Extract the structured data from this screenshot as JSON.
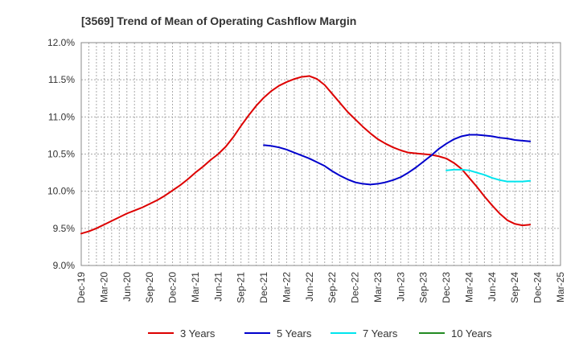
{
  "chart_data": {
    "type": "line",
    "title": "[3569]  Trend of Mean of Operating Cashflow Margin",
    "xlabel": "",
    "ylabel": "",
    "ylim": [
      9.0,
      12.0
    ],
    "yticks": [
      "9.0%",
      "9.5%",
      "10.0%",
      "10.5%",
      "11.0%",
      "11.5%",
      "12.0%"
    ],
    "ytick_values": [
      9.0,
      9.5,
      10.0,
      10.5,
      11.0,
      11.5,
      12.0
    ],
    "xticks": [
      "Dec-19",
      "Mar-20",
      "Jun-20",
      "Sep-20",
      "Dec-20",
      "Mar-21",
      "Jun-21",
      "Sep-21",
      "Dec-21",
      "Mar-22",
      "Jun-22",
      "Sep-22",
      "Dec-22",
      "Mar-23",
      "Jun-23",
      "Sep-23",
      "Dec-23",
      "Mar-24",
      "Jun-24",
      "Sep-24",
      "Dec-24",
      "Mar-25"
    ],
    "x": [
      "Dec-19",
      "Jan-20",
      "Feb-20",
      "Mar-20",
      "Apr-20",
      "May-20",
      "Jun-20",
      "Jul-20",
      "Aug-20",
      "Sep-20",
      "Oct-20",
      "Nov-20",
      "Dec-20",
      "Jan-21",
      "Feb-21",
      "Mar-21",
      "Apr-21",
      "May-21",
      "Jun-21",
      "Jul-21",
      "Aug-21",
      "Sep-21",
      "Oct-21",
      "Nov-21",
      "Dec-21",
      "Jan-22",
      "Feb-22",
      "Mar-22",
      "Apr-22",
      "May-22",
      "Jun-22",
      "Jul-22",
      "Aug-22",
      "Sep-22",
      "Oct-22",
      "Nov-22",
      "Dec-22",
      "Jan-23",
      "Feb-23",
      "Mar-23",
      "Apr-23",
      "May-23",
      "Jun-23",
      "Jul-23",
      "Aug-23",
      "Sep-23",
      "Oct-23",
      "Nov-23",
      "Dec-23",
      "Jan-24",
      "Feb-24",
      "Mar-24",
      "Apr-24",
      "May-24",
      "Jun-24",
      "Jul-24",
      "Aug-24",
      "Sep-24",
      "Oct-24",
      "Nov-24",
      "Dec-24",
      "Jan-25",
      "Feb-25",
      "Mar-25"
    ],
    "grid": true,
    "legend_position": "bottom",
    "series": [
      {
        "name": "3 Years",
        "color": "#dd0000",
        "values": [
          9.43,
          9.46,
          9.5,
          9.55,
          9.6,
          9.65,
          9.7,
          9.74,
          9.78,
          9.83,
          9.88,
          9.94,
          10.01,
          10.08,
          10.16,
          10.25,
          10.33,
          10.42,
          10.5,
          10.6,
          10.73,
          10.88,
          11.02,
          11.15,
          11.26,
          11.35,
          11.42,
          11.47,
          11.51,
          11.54,
          11.55,
          11.51,
          11.43,
          11.31,
          11.19,
          11.07,
          10.97,
          10.87,
          10.78,
          10.7,
          10.64,
          10.59,
          10.55,
          10.52,
          10.51,
          10.5,
          10.49,
          10.47,
          10.44,
          10.38,
          10.3,
          10.18,
          10.06,
          9.93,
          9.81,
          9.7,
          9.61,
          9.56,
          9.54,
          9.55,
          null,
          null,
          null,
          null
        ]
      },
      {
        "name": "5 Years",
        "color": "#0000cc",
        "values": [
          null,
          null,
          null,
          null,
          null,
          null,
          null,
          null,
          null,
          null,
          null,
          null,
          null,
          null,
          null,
          null,
          null,
          null,
          null,
          null,
          null,
          null,
          null,
          null,
          10.62,
          10.61,
          10.59,
          10.56,
          10.52,
          10.48,
          10.44,
          10.39,
          10.34,
          10.27,
          10.21,
          10.16,
          10.12,
          10.1,
          10.09,
          10.1,
          10.12,
          10.15,
          10.19,
          10.25,
          10.32,
          10.4,
          10.48,
          10.57,
          10.64,
          10.7,
          10.74,
          10.76,
          10.76,
          10.75,
          10.74,
          10.72,
          10.71,
          10.69,
          10.68,
          10.67,
          null,
          null,
          null,
          null
        ]
      },
      {
        "name": "7 Years",
        "color": "#00e5ee",
        "values": [
          null,
          null,
          null,
          null,
          null,
          null,
          null,
          null,
          null,
          null,
          null,
          null,
          null,
          null,
          null,
          null,
          null,
          null,
          null,
          null,
          null,
          null,
          null,
          null,
          null,
          null,
          null,
          null,
          null,
          null,
          null,
          null,
          null,
          null,
          null,
          null,
          null,
          null,
          null,
          null,
          null,
          null,
          null,
          null,
          null,
          null,
          null,
          null,
          10.28,
          10.29,
          10.29,
          10.28,
          10.25,
          10.22,
          10.18,
          10.15,
          10.13,
          10.13,
          10.13,
          10.14,
          null,
          null,
          null,
          null
        ]
      },
      {
        "name": "10 Years",
        "color": "#228b22",
        "values": [
          null,
          null,
          null,
          null,
          null,
          null,
          null,
          null,
          null,
          null,
          null,
          null,
          null,
          null,
          null,
          null,
          null,
          null,
          null,
          null,
          null,
          null,
          null,
          null,
          null,
          null,
          null,
          null,
          null,
          null,
          null,
          null,
          null,
          null,
          null,
          null,
          null,
          null,
          null,
          null,
          null,
          null,
          null,
          null,
          null,
          null,
          null,
          null,
          null,
          null,
          null,
          null,
          null,
          null,
          null,
          null,
          null,
          null,
          null,
          null,
          null,
          null,
          null,
          null
        ]
      }
    ]
  }
}
